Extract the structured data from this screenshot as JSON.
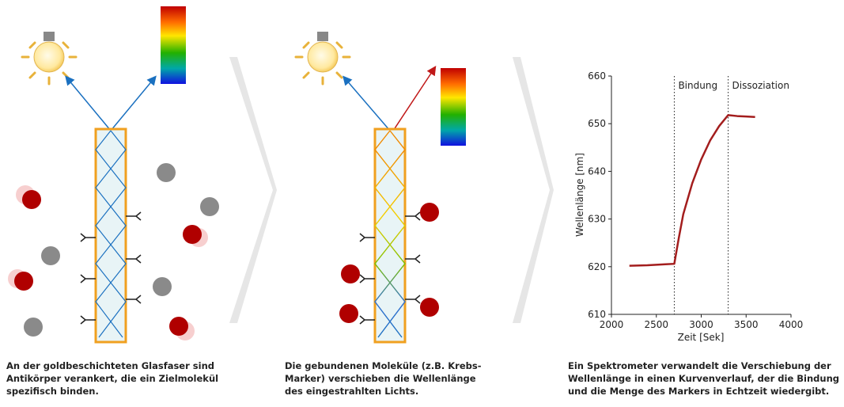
{
  "captions": [
    [
      "An der goldbeschichteten Glasfaser sind",
      "Antikörper verankert, die ein Zielmolekül",
      "spezifisch binden."
    ],
    [
      "Die gebundenen Moleküle (z.B. Krebs-",
      "Marker) verschieben die Wellenlänge",
      "des eingestrahlten Lichts."
    ],
    [
      "Ein Spektrometer verwandelt die Verschiebung der",
      "Wellenlänge in einen Kurvenverlauf, der die Bindung",
      "und die Menge des Markers in Echtzeit wiedergibt."
    ]
  ],
  "chart_data": {
    "type": "line",
    "x_label": "Zeit [Sek]",
    "y_label": "Wellenlänge [nm]",
    "x": [
      2200,
      2400,
      2600,
      2700,
      2750,
      2800,
      2900,
      3000,
      3100,
      3200,
      3300,
      3400,
      3500,
      3600
    ],
    "values": [
      620.2,
      620.3,
      620.5,
      620.6,
      626,
      631,
      637.5,
      642.5,
      646.5,
      649.5,
      651.8,
      651.6,
      651.5,
      651.4
    ],
    "color": "#a31d1d",
    "xlim": [
      2000,
      4000
    ],
    "ylim": [
      610,
      660
    ],
    "xticks": [
      2000,
      2500,
      3000,
      3500,
      4000
    ],
    "yticks": [
      610,
      620,
      630,
      640,
      650,
      660
    ],
    "phases": [
      {
        "x": 2700,
        "label": "Bindung"
      },
      {
        "x": 3300,
        "label": "Dissoziation"
      }
    ]
  }
}
